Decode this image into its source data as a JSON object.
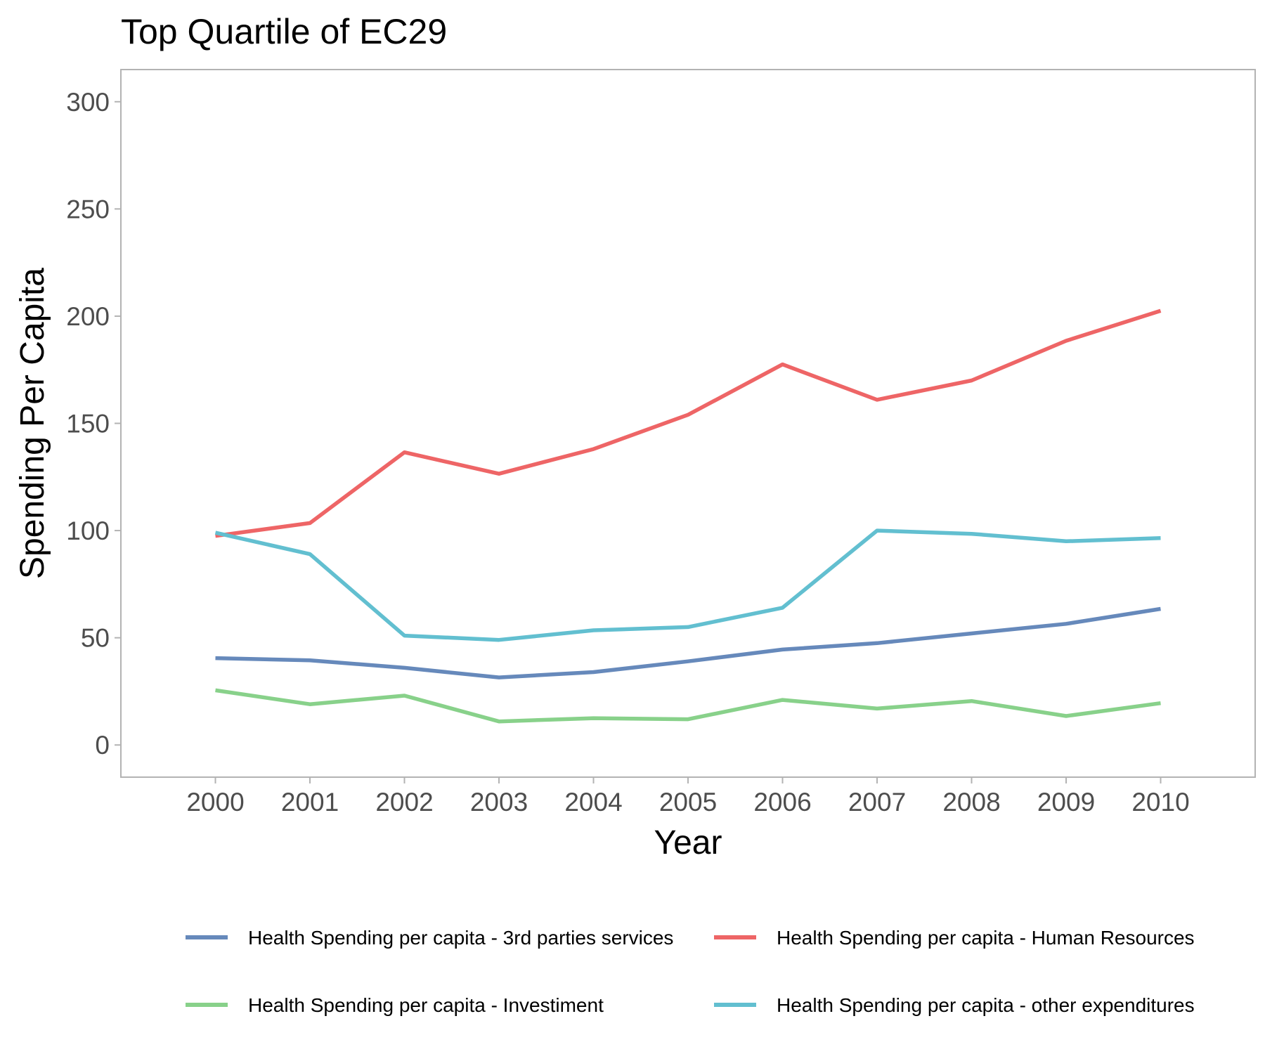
{
  "chart_data": {
    "type": "line",
    "title": "Top Quartile of EC29",
    "xlabel": "Year",
    "ylabel": "Spending Per Capita",
    "x": [
      2000,
      2001,
      2002,
      2003,
      2004,
      2005,
      2006,
      2007,
      2008,
      2009,
      2010
    ],
    "ylim": [
      -15,
      315
    ],
    "yticks": [
      0,
      50,
      100,
      150,
      200,
      250,
      300
    ],
    "grid": false,
    "legend_position": "bottom",
    "series": [
      {
        "name": "Health Spending per capita - 3rd parties services",
        "color": "#6689bb",
        "values": [
          40.5,
          39.5,
          36,
          31.5,
          34,
          39,
          44.5,
          47.5,
          52,
          56.5,
          63.5
        ]
      },
      {
        "name": "Health Spending per capita - Human Resources",
        "color": "#ee6566",
        "values": [
          97.5,
          103.5,
          136.5,
          126.5,
          138,
          154,
          177.5,
          161,
          170,
          188.5,
          202.5
        ]
      },
      {
        "name": "Health Spending per capita - Investiment",
        "color": "#88d18a",
        "values": [
          25.5,
          19,
          23,
          11,
          12.5,
          12,
          21,
          17,
          20.5,
          13.5,
          19.5
        ]
      },
      {
        "name": "Health Spending per capita - other expenditures",
        "color": "#62bfd0",
        "values": [
          99,
          89,
          51,
          49,
          53.5,
          55,
          64,
          100,
          98.5,
          95,
          96.5
        ]
      }
    ]
  }
}
